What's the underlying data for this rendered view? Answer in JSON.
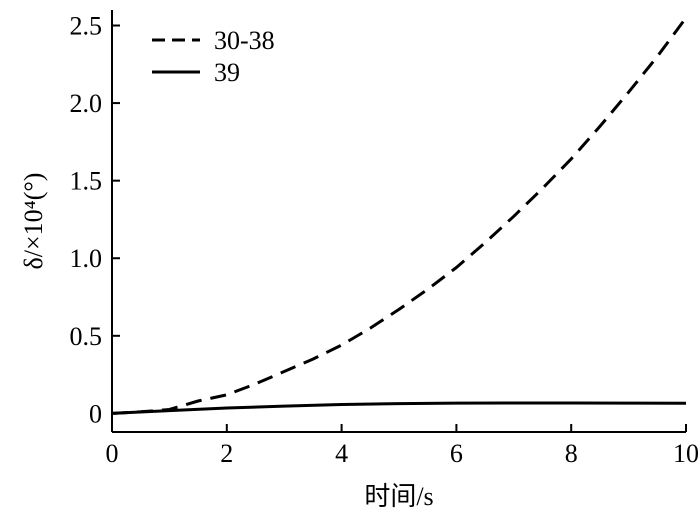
{
  "chart_data": {
    "type": "line",
    "xlabel": "时间/s",
    "ylabel": "δ/×10⁴(°)",
    "xlim": [
      0,
      10
    ],
    "ylim": [
      -0.12,
      2.6
    ],
    "xticks": [
      0,
      2,
      4,
      6,
      8,
      10
    ],
    "yticks": [
      0,
      0.5,
      1.0,
      1.5,
      2.0,
      2.5
    ],
    "xtick_labels": [
      "0",
      "2",
      "4",
      "6",
      "8",
      "10"
    ],
    "ytick_labels": [
      "0",
      "0.5",
      "1.0",
      "1.5",
      "2.0",
      "2.5"
    ],
    "grid": false,
    "legend_position": "top-left",
    "series": [
      {
        "name": "30-38",
        "style": "dashed",
        "color": "#000000",
        "x": [
          0,
          0.5,
          1,
          1.5,
          2,
          2.5,
          3,
          3.5,
          4,
          4.5,
          5,
          5.5,
          6,
          6.5,
          7,
          7.5,
          8,
          8.5,
          9,
          9.5,
          10
        ],
        "y": [
          0,
          0.01,
          0.025,
          0.08,
          0.12,
          0.19,
          0.27,
          0.35,
          0.44,
          0.55,
          0.67,
          0.8,
          0.94,
          1.1,
          1.27,
          1.45,
          1.64,
          1.85,
          2.07,
          2.3,
          2.55
        ]
      },
      {
        "name": "39",
        "style": "solid",
        "color": "#000000",
        "x": [
          0,
          1,
          2,
          3,
          4,
          5,
          6,
          7,
          8,
          9,
          10
        ],
        "y": [
          0,
          0.018,
          0.035,
          0.047,
          0.057,
          0.063,
          0.066,
          0.067,
          0.067,
          0.066,
          0.065
        ]
      }
    ]
  }
}
